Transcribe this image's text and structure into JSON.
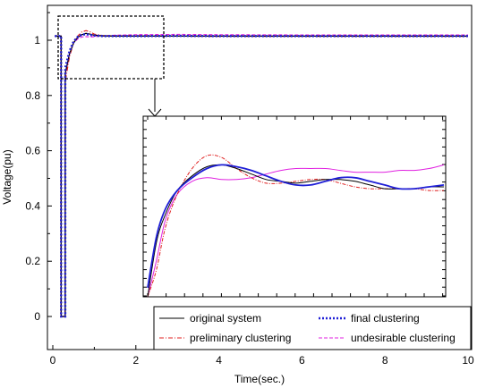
{
  "chart_data": {
    "type": "line",
    "xlabel": "Time(sec.)",
    "ylabel": "Voltage(pu)",
    "xlim": [
      0,
      10
    ],
    "ylim": [
      -0.1,
      1.15
    ],
    "x_ticks": [
      "0",
      "2",
      "4",
      "6",
      "8",
      "10"
    ],
    "y_ticks": [
      "0",
      "0.2",
      "0.4",
      "0.6",
      "0.8",
      "1"
    ],
    "grid": false,
    "legend_placement": "bottom-right",
    "legend": [
      "original system",
      "final clustering",
      "preliminary clustering",
      "undesirable clustering"
    ],
    "colors": {
      "original system": "#000000",
      "final clustering": "#1f1fd6",
      "preliminary clustering": "#e02020",
      "undesirable clustering": "#e020e0"
    },
    "series": [
      {
        "name": "original system",
        "style": "solid",
        "x": [
          0.05,
          0.2,
          0.2,
          0.3,
          0.3,
          0.4,
          0.5,
          0.6,
          0.7,
          0.8,
          0.9,
          1.0,
          1.2,
          1.5,
          2.0,
          3.0,
          4.0,
          6.0,
          8.0,
          10.0
        ],
        "y": [
          1.015,
          1.015,
          0.0,
          0.0,
          0.88,
          0.95,
          0.99,
          1.01,
          1.02,
          1.025,
          1.022,
          1.018,
          1.016,
          1.015,
          1.015,
          1.015,
          1.015,
          1.015,
          1.015,
          1.015
        ]
      },
      {
        "name": "final clustering",
        "style": "dotted",
        "x": [
          0.05,
          0.2,
          0.2,
          0.3,
          0.3,
          0.4,
          0.5,
          0.6,
          0.7,
          0.8,
          0.9,
          1.0,
          1.2,
          1.5,
          2.0,
          3.0,
          4.0,
          6.0,
          8.0,
          10.0
        ],
        "y": [
          1.015,
          1.015,
          0.0,
          0.0,
          0.9,
          0.96,
          0.995,
          1.012,
          1.02,
          1.022,
          1.019,
          1.017,
          1.015,
          1.015,
          1.015,
          1.016,
          1.015,
          1.015,
          1.015,
          1.015
        ]
      },
      {
        "name": "preliminary clustering",
        "style": "dashdot",
        "x": [
          0.05,
          0.2,
          0.2,
          0.3,
          0.3,
          0.4,
          0.5,
          0.6,
          0.7,
          0.8,
          0.9,
          1.0,
          1.2,
          1.5,
          2.0,
          3.0,
          4.0,
          6.0,
          8.0,
          10.0
        ],
        "y": [
          1.015,
          1.015,
          0.0,
          0.0,
          0.85,
          0.94,
          0.99,
          1.015,
          1.03,
          1.035,
          1.03,
          1.022,
          1.017,
          1.015,
          1.016,
          1.015,
          1.014,
          1.014,
          1.014,
          1.014
        ]
      },
      {
        "name": "undesirable clustering",
        "style": "dashed",
        "x": [
          0.05,
          0.2,
          0.2,
          0.3,
          0.3,
          0.4,
          0.5,
          0.6,
          0.7,
          0.8,
          0.9,
          1.0,
          1.2,
          1.5,
          2.0,
          3.0,
          4.0,
          6.0,
          8.0,
          10.0
        ],
        "y": [
          1.015,
          1.015,
          0.0,
          0.0,
          0.87,
          0.95,
          0.99,
          1.005,
          1.012,
          1.013,
          1.012,
          1.013,
          1.016,
          1.018,
          1.02,
          1.021,
          1.02,
          1.019,
          1.019,
          1.019
        ]
      }
    ],
    "inset": {
      "position": "center-right",
      "series": [
        {
          "name": "original system",
          "t": [
            0.0,
            0.03,
            0.06,
            0.1,
            0.15,
            0.2,
            0.25,
            0.3,
            0.35,
            0.4,
            0.45,
            0.5,
            0.55,
            0.6,
            0.65,
            0.7,
            0.75,
            0.8,
            0.85,
            0.9,
            0.95,
            1.0
          ],
          "v": [
            0.0,
            0.3,
            0.45,
            0.58,
            0.66,
            0.71,
            0.72,
            0.7,
            0.67,
            0.64,
            0.63,
            0.62,
            0.63,
            0.64,
            0.64,
            0.63,
            0.61,
            0.59,
            0.59,
            0.59,
            0.6,
            0.6
          ]
        },
        {
          "name": "final clustering",
          "t": [
            0.0,
            0.03,
            0.06,
            0.1,
            0.15,
            0.2,
            0.25,
            0.3,
            0.35,
            0.4,
            0.45,
            0.5,
            0.55,
            0.6,
            0.65,
            0.7,
            0.75,
            0.8,
            0.85,
            0.9,
            0.95,
            1.0
          ],
          "v": [
            0.05,
            0.33,
            0.48,
            0.58,
            0.65,
            0.7,
            0.72,
            0.71,
            0.69,
            0.66,
            0.63,
            0.61,
            0.61,
            0.63,
            0.65,
            0.65,
            0.63,
            0.61,
            0.59,
            0.59,
            0.6,
            0.61
          ]
        },
        {
          "name": "preliminary clustering",
          "t": [
            0.0,
            0.03,
            0.06,
            0.1,
            0.15,
            0.2,
            0.25,
            0.3,
            0.35,
            0.4,
            0.45,
            0.5,
            0.55,
            0.6,
            0.65,
            0.7,
            0.75,
            0.8,
            0.85,
            0.9,
            0.95,
            1.0
          ],
          "v": [
            0.0,
            0.15,
            0.38,
            0.56,
            0.7,
            0.77,
            0.76,
            0.7,
            0.65,
            0.62,
            0.62,
            0.63,
            0.64,
            0.64,
            0.62,
            0.6,
            0.59,
            0.59,
            0.59,
            0.59,
            0.58,
            0.58
          ]
        },
        {
          "name": "undesirable clustering",
          "t": [
            0.0,
            0.03,
            0.06,
            0.1,
            0.15,
            0.2,
            0.25,
            0.3,
            0.35,
            0.4,
            0.45,
            0.5,
            0.55,
            0.6,
            0.65,
            0.7,
            0.75,
            0.8,
            0.85,
            0.9,
            0.95,
            1.0
          ],
          "v": [
            0.0,
            0.2,
            0.42,
            0.56,
            0.63,
            0.65,
            0.64,
            0.64,
            0.65,
            0.67,
            0.69,
            0.7,
            0.7,
            0.7,
            0.69,
            0.68,
            0.68,
            0.68,
            0.69,
            0.69,
            0.7,
            0.72
          ]
        }
      ]
    }
  }
}
